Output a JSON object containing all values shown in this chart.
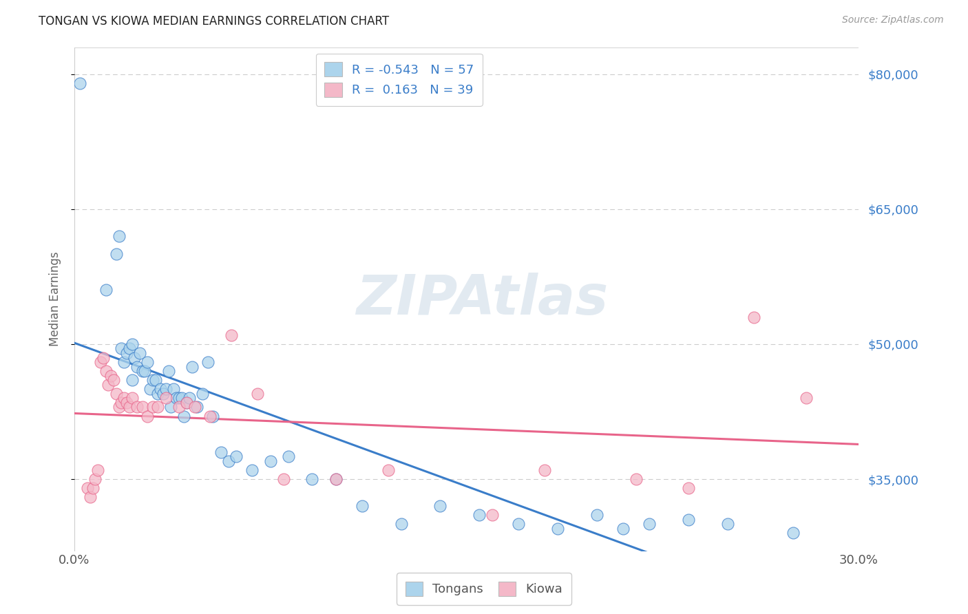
{
  "title": "TONGAN VS KIOWA MEDIAN EARNINGS CORRELATION CHART",
  "source": "Source: ZipAtlas.com",
  "ylabel": "Median Earnings",
  "yticks": [
    35000,
    50000,
    65000,
    80000
  ],
  "ytick_labels": [
    "$35,000",
    "$50,000",
    "$65,000",
    "$80,000"
  ],
  "ylim": [
    27000,
    83000
  ],
  "xlim": [
    0.0,
    0.3
  ],
  "watermark": "ZIPAtlas",
  "legend_r1": "R = -0.543   N = 57",
  "legend_r2": "R =  0.163   N = 39",
  "tongans_color": "#ACD4EC",
  "kiowa_color": "#F4B8C8",
  "trend_tongans_color": "#3A7DC9",
  "trend_kiowa_color": "#E8648A",
  "background_color": "#FFFFFF",
  "tongans_x": [
    0.002,
    0.012,
    0.016,
    0.017,
    0.018,
    0.019,
    0.02,
    0.021,
    0.022,
    0.022,
    0.023,
    0.024,
    0.025,
    0.026,
    0.027,
    0.028,
    0.029,
    0.03,
    0.031,
    0.032,
    0.033,
    0.034,
    0.035,
    0.036,
    0.037,
    0.038,
    0.039,
    0.04,
    0.041,
    0.042,
    0.043,
    0.044,
    0.045,
    0.047,
    0.049,
    0.051,
    0.053,
    0.056,
    0.059,
    0.062,
    0.068,
    0.075,
    0.082,
    0.091,
    0.1,
    0.11,
    0.125,
    0.14,
    0.155,
    0.17,
    0.185,
    0.2,
    0.21,
    0.22,
    0.235,
    0.25,
    0.275
  ],
  "tongans_y": [
    79000,
    56000,
    60000,
    62000,
    49500,
    48000,
    49000,
    49500,
    46000,
    50000,
    48500,
    47500,
    49000,
    47000,
    47000,
    48000,
    45000,
    46000,
    46000,
    44500,
    45000,
    44500,
    45000,
    47000,
    43000,
    45000,
    44000,
    44000,
    44000,
    42000,
    43500,
    44000,
    47500,
    43000,
    44500,
    48000,
    42000,
    38000,
    37000,
    37500,
    36000,
    37000,
    37500,
    35000,
    35000,
    32000,
    30000,
    32000,
    31000,
    30000,
    29500,
    31000,
    29500,
    30000,
    30500,
    30000,
    29000
  ],
  "kiowa_x": [
    0.005,
    0.006,
    0.007,
    0.008,
    0.009,
    0.01,
    0.011,
    0.012,
    0.013,
    0.014,
    0.015,
    0.016,
    0.017,
    0.018,
    0.019,
    0.02,
    0.021,
    0.022,
    0.024,
    0.026,
    0.028,
    0.03,
    0.032,
    0.035,
    0.04,
    0.043,
    0.046,
    0.052,
    0.06,
    0.07,
    0.08,
    0.1,
    0.12,
    0.16,
    0.18,
    0.215,
    0.235,
    0.26,
    0.28
  ],
  "kiowa_y": [
    34000,
    33000,
    34000,
    35000,
    36000,
    48000,
    48500,
    47000,
    45500,
    46500,
    46000,
    44500,
    43000,
    43500,
    44000,
    43500,
    43000,
    44000,
    43000,
    43000,
    42000,
    43000,
    43000,
    44000,
    43000,
    43500,
    43000,
    42000,
    51000,
    44500,
    35000,
    35000,
    36000,
    31000,
    36000,
    35000,
    34000,
    53000,
    44000
  ]
}
